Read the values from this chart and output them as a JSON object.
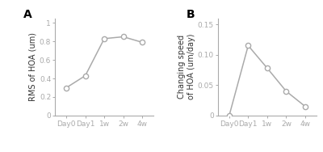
{
  "panel_A": {
    "label": "A",
    "x_labels": [
      "Day0",
      "Day1",
      "1w",
      "2w",
      "4w"
    ],
    "x_values": [
      0,
      1,
      2,
      3,
      4
    ],
    "y_values": [
      0.3,
      0.43,
      0.83,
      0.85,
      0.79
    ],
    "ylabel": "RMS of HOA (um)",
    "ylim": [
      0,
      1.05
    ],
    "yticks": [
      0,
      0.2,
      0.4,
      0.6,
      0.8,
      1.0
    ],
    "ytick_labels": [
      "0",
      "0.2",
      "0.4",
      "0.6",
      "0.8",
      "1"
    ]
  },
  "panel_B": {
    "label": "B",
    "x_labels": [
      "Day0",
      "Day1",
      "1w",
      "2w",
      "4w"
    ],
    "x_values": [
      0,
      1,
      2,
      3,
      4
    ],
    "y_values": [
      0.0,
      0.115,
      0.078,
      0.04,
      0.015
    ],
    "ylabel": "Changing speed\nof HOA (um/day)",
    "ylim": [
      0,
      0.16
    ],
    "yticks": [
      0,
      0.05,
      0.1,
      0.15
    ],
    "ytick_labels": [
      "0",
      "0.05",
      "0.10",
      "0.15"
    ]
  },
  "line_color": "#aaaaaa",
  "marker_facecolor": "#ffffff",
  "marker_edgecolor": "#aaaaaa",
  "marker_size": 4.5,
  "marker_edgewidth": 1.0,
  "line_width": 1.1,
  "background_color": "#ffffff",
  "tick_label_color": "#555555",
  "tick_label_size": 6.5,
  "ylabel_size": 7,
  "ylabel_color": "#333333",
  "panel_label_size": 10,
  "spine_color": "#aaaaaa",
  "spine_linewidth": 0.8
}
